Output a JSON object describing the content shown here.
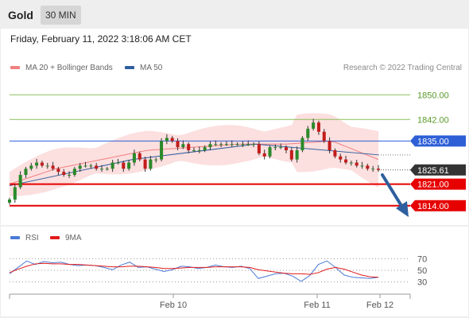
{
  "header": {
    "symbol": "Gold",
    "timeframe": "30 MIN"
  },
  "datetime": "Friday, February 11, 2022 3:18:06 AM CET",
  "legend": [
    {
      "label": "MA 20 + Bollinger Bands",
      "color": "#f08080"
    },
    {
      "label": "MA 50",
      "color": "#2e5f9e"
    }
  ],
  "copyright": "Research © 2022 Trading Central",
  "rsi_legend": [
    {
      "label": "RSI",
      "color": "#4a7ad6"
    },
    {
      "label": "9MA",
      "color": "#e21b1b"
    }
  ],
  "colors": {
    "bull": "#2a8a2a",
    "bear": "#c21c1c",
    "resistance": "#8cbf5a",
    "support": "#e60000",
    "pivot": "#2e5fd6",
    "arrow": "#2e5f9e"
  },
  "chart_data": [
    {
      "type": "candlestick",
      "title": "Gold 30 MIN",
      "ylim": [
        1808,
        1856
      ],
      "x_ticks": [
        "Feb 10",
        "Feb 11",
        "Feb 12"
      ],
      "last_price": 1825.61,
      "levels": [
        {
          "value": 1850.0,
          "label": "1850.00",
          "kind": "resistance"
        },
        {
          "value": 1842.0,
          "label": "1842.00",
          "kind": "resistance"
        },
        {
          "value": 1835.0,
          "label": "1835.00",
          "kind": "pivot"
        },
        {
          "value": 1821.0,
          "label": "1821.00",
          "kind": "support"
        },
        {
          "value": 1814.0,
          "label": "1814.00",
          "kind": "support"
        }
      ],
      "price_label": {
        "value": 1825.61,
        "label": "1825.61"
      },
      "closes": [
        1816,
        1820,
        1824,
        1826,
        1827,
        1828,
        1827,
        1827,
        1826,
        1825,
        1824,
        1824,
        1826,
        1827,
        1827,
        1827,
        1826,
        1826,
        1826,
        1828,
        1828,
        1826,
        1828,
        1831,
        1829,
        1826,
        1829,
        1829,
        1835,
        1836,
        1835,
        1833,
        1834,
        1832,
        1832,
        1832,
        1833,
        1834,
        1834,
        1834,
        1834,
        1834,
        1834,
        1834,
        1834,
        1834,
        1831,
        1830,
        1833,
        1833,
        1833,
        1832,
        1829,
        1832,
        1836,
        1839,
        1841,
        1838,
        1835,
        1832,
        1830,
        1829,
        1828,
        1828,
        1827,
        1827,
        1826,
        1826,
        1825.61
      ],
      "ma50": [
        1820.5,
        1829.0,
        1834.0,
        1830.5
      ],
      "ma20": [
        1821,
        1826,
        1829,
        1832,
        1833,
        1834,
        1834,
        1835,
        1829
      ]
    },
    {
      "type": "line",
      "title": "RSI",
      "ylim": [
        20,
        80
      ],
      "y_ticks": [
        "70",
        "50",
        "30"
      ],
      "series": [
        {
          "name": "RSI",
          "values": [
            44,
            55,
            66,
            60,
            65,
            63,
            64,
            60,
            58,
            59,
            58,
            55,
            51,
            59,
            64,
            55,
            56,
            52,
            48,
            51,
            57,
            56,
            53,
            55,
            59,
            56,
            55,
            57,
            53,
            36,
            40,
            44,
            45,
            40,
            31,
            41,
            60,
            66,
            55,
            42,
            38,
            37,
            36,
            38
          ]
        },
        {
          "name": "9MA",
          "values": [
            46,
            52,
            57,
            61,
            62,
            61,
            61,
            60,
            60,
            59,
            58,
            57,
            56,
            56,
            57,
            57,
            56,
            55,
            53,
            53,
            54,
            55,
            55,
            55,
            56,
            56,
            56,
            56,
            55,
            51,
            49,
            47,
            45,
            44,
            44,
            43,
            46,
            52,
            55,
            52,
            47,
            42,
            39,
            38
          ]
        }
      ]
    }
  ]
}
